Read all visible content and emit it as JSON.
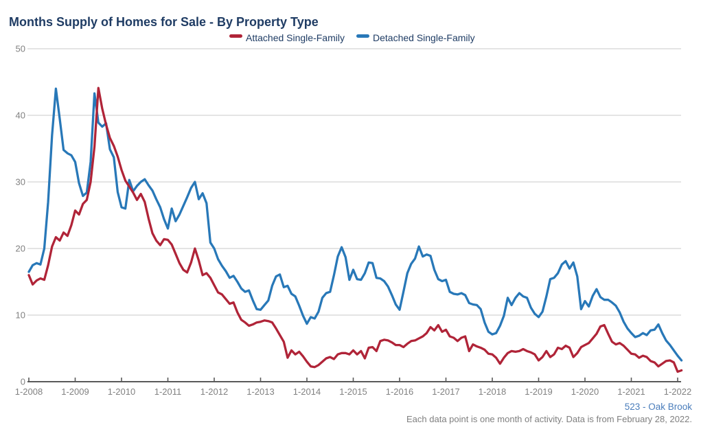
{
  "title": "Months Supply of Homes for Sale - By Property Type",
  "footer": {
    "source": "523 - Oak Brook",
    "note": "Each data point is one month of activity. Data is from February 28, 2022."
  },
  "chart_data": {
    "type": "line",
    "title": "Months Supply of Homes for Sale - By Property Type",
    "x_start": "1-2008",
    "x_end": "2-2022",
    "x_interval": "monthly",
    "x_tick_labels": [
      "1-2008",
      "1-2009",
      "1-2010",
      "1-2011",
      "1-2012",
      "1-2013",
      "1-2014",
      "1-2015",
      "1-2016",
      "1-2017",
      "1-2018",
      "1-2019",
      "1-2020",
      "1-2021",
      "1-2022"
    ],
    "ylim": [
      0,
      50
    ],
    "yticks": [
      0,
      10,
      20,
      30,
      40,
      50
    ],
    "grid": "horizontal",
    "legend_position": "top-center",
    "axis_color": "#595959",
    "grid_color": "#c9c9c9",
    "series": [
      {
        "name": "Attached Single-Family",
        "color": "#b02438",
        "values": [
          16.0,
          14.6,
          15.2,
          15.5,
          15.3,
          17.5,
          20.3,
          21.7,
          21.2,
          22.4,
          21.9,
          23.5,
          25.7,
          25.1,
          26.7,
          27.3,
          30.0,
          35.3,
          44.1,
          41.0,
          38.6,
          36.6,
          35.4,
          33.8,
          31.8,
          30.2,
          29.3,
          28.4,
          27.3,
          28.2,
          27.0,
          24.5,
          22.3,
          21.2,
          20.5,
          21.4,
          21.3,
          20.6,
          19.2,
          17.8,
          16.8,
          16.4,
          17.9,
          20.0,
          18.2,
          16.0,
          16.3,
          15.6,
          14.5,
          13.4,
          13.1,
          12.4,
          11.7,
          11.9,
          10.4,
          9.3,
          8.9,
          8.4,
          8.6,
          8.9,
          9.0,
          9.2,
          9.1,
          8.9,
          8.0,
          7.0,
          6.0,
          3.6,
          4.7,
          4.1,
          4.5,
          3.8,
          3.0,
          2.3,
          2.2,
          2.5,
          3.0,
          3.5,
          3.7,
          3.4,
          4.1,
          4.3,
          4.3,
          4.1,
          4.7,
          4.1,
          4.6,
          3.5,
          5.1,
          5.2,
          4.6,
          6.1,
          6.3,
          6.2,
          5.9,
          5.5,
          5.5,
          5.2,
          5.7,
          6.1,
          6.2,
          6.5,
          6.8,
          7.3,
          8.2,
          7.7,
          8.5,
          7.5,
          7.8,
          6.8,
          6.6,
          6.1,
          6.6,
          6.8,
          4.6,
          5.6,
          5.3,
          5.1,
          4.8,
          4.2,
          4.1,
          3.6,
          2.7,
          3.6,
          4.3,
          4.6,
          4.5,
          4.6,
          4.9,
          4.6,
          4.4,
          4.1,
          3.2,
          3.7,
          4.6,
          3.7,
          4.1,
          5.1,
          4.9,
          5.4,
          5.1,
          3.7,
          4.3,
          5.2,
          5.5,
          5.8,
          6.5,
          7.2,
          8.3,
          8.5,
          7.2,
          6.0,
          5.6,
          5.8,
          5.4,
          4.8,
          4.2,
          4.1,
          3.6,
          3.9,
          3.7,
          3.1,
          2.9,
          2.3,
          2.7,
          3.1,
          3.2,
          2.9,
          1.5,
          1.7
        ]
      },
      {
        "name": "Detached Single-Family",
        "color": "#2878b8",
        "values": [
          16.5,
          17.5,
          17.8,
          17.6,
          20.0,
          27.0,
          37.0,
          44.0,
          39.5,
          34.8,
          34.3,
          34.0,
          33.0,
          29.8,
          27.9,
          28.4,
          33.0,
          43.3,
          38.9,
          38.3,
          38.8,
          34.9,
          33.7,
          28.5,
          26.2,
          26.0,
          30.3,
          28.6,
          29.4,
          30.0,
          30.4,
          29.5,
          28.7,
          27.4,
          26.2,
          24.4,
          23.0,
          26.0,
          24.1,
          25.1,
          26.4,
          27.7,
          29.1,
          30.0,
          27.4,
          28.3,
          26.8,
          20.9,
          20.0,
          18.4,
          17.4,
          16.6,
          15.6,
          15.9,
          15.0,
          14.0,
          13.5,
          13.7,
          12.2,
          10.9,
          10.8,
          11.5,
          12.2,
          14.4,
          15.8,
          16.1,
          14.2,
          14.4,
          13.2,
          12.8,
          11.4,
          9.9,
          8.7,
          9.7,
          9.5,
          10.5,
          12.6,
          13.3,
          13.5,
          16.0,
          18.8,
          20.2,
          18.7,
          15.3,
          16.8,
          15.4,
          15.3,
          16.3,
          17.9,
          17.8,
          15.6,
          15.5,
          15.1,
          14.3,
          13.0,
          11.6,
          10.8,
          13.5,
          16.3,
          17.7,
          18.5,
          20.3,
          18.8,
          19.1,
          18.9,
          16.8,
          15.4,
          15.1,
          15.3,
          13.5,
          13.2,
          13.1,
          13.3,
          13.0,
          11.8,
          11.6,
          11.5,
          10.9,
          8.9,
          7.5,
          7.1,
          7.3,
          8.4,
          9.9,
          12.6,
          11.5,
          12.6,
          13.3,
          12.8,
          12.6,
          11.1,
          10.2,
          9.7,
          10.5,
          12.8,
          15.4,
          15.6,
          16.3,
          17.6,
          18.1,
          17.0,
          17.9,
          15.8,
          10.9,
          12.1,
          11.3,
          12.9,
          13.9,
          12.7,
          12.3,
          12.3,
          11.9,
          11.4,
          10.4,
          9.0,
          8.0,
          7.3,
          6.7,
          6.9,
          7.3,
          7.0,
          7.7,
          7.8,
          8.6,
          7.3,
          6.2,
          5.5,
          4.7,
          3.9,
          3.2
        ]
      }
    ]
  }
}
